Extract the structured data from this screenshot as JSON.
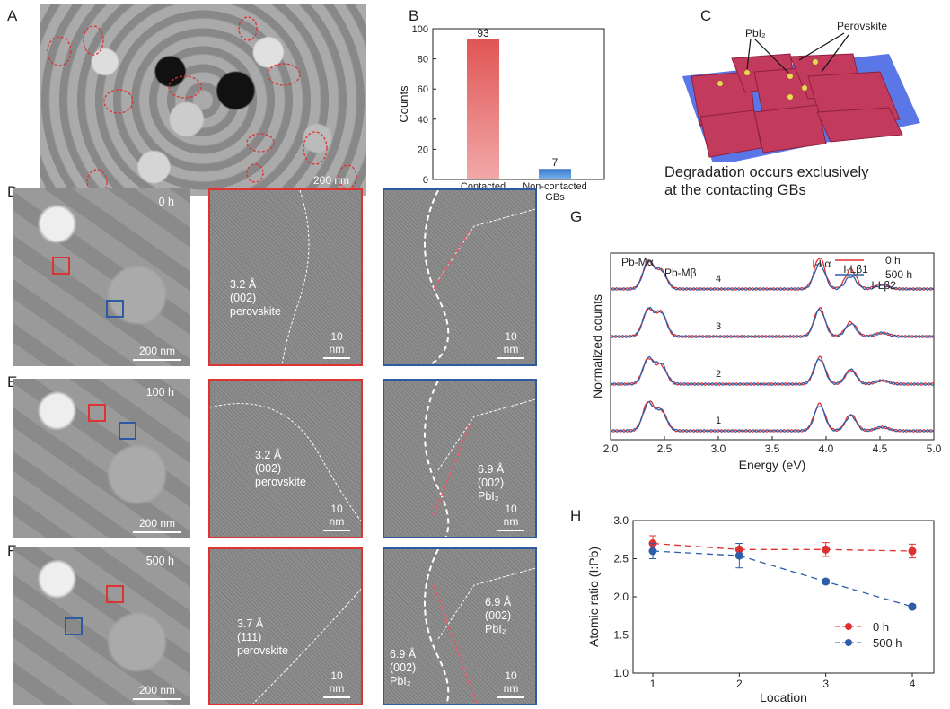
{
  "panels": {
    "A": "A",
    "B": "B",
    "C": "C",
    "D": "D",
    "E": "E",
    "F": "F",
    "G": "G",
    "H": "H"
  },
  "panelA": {
    "scale": "200 nm"
  },
  "panelC": {
    "label_pbi2": "PbI₂",
    "label_perovskite": "Perovskite",
    "caption_line1": "Degradation occurs exclusively",
    "caption_line2": "at the contacting GBs"
  },
  "panelD": {
    "time": "0 h",
    "scale": "200 nm",
    "mid": {
      "line1": "3.2 Å",
      "line2": "(002)",
      "line3": "perovskite",
      "scale": "10 nm"
    },
    "right": {
      "scale": "10 nm"
    }
  },
  "panelE": {
    "time": "100 h",
    "scale": "200 nm",
    "mid": {
      "line1": "3.2 Å",
      "line2": "(002)",
      "line3": "perovskite",
      "scale": "10 nm"
    },
    "right": {
      "line1": "6.9 Å",
      "line2": "(002)",
      "line3": "PbI₂",
      "scale": "10 nm"
    }
  },
  "panelF": {
    "time": "500 h",
    "scale": "200 nm",
    "mid": {
      "line1": "3.7 Å",
      "line2": "(111)",
      "line3": "perovskite",
      "scale": "10 nm"
    },
    "right": {
      "a1": "6.9 Å",
      "a2": "(002)",
      "a3": "PbI₂",
      "b1": "6.9 Å",
      "b2": "(002)",
      "b3": "PbI₂",
      "scale": "10 nm"
    }
  },
  "chart_data": [
    {
      "type": "bar",
      "title": "",
      "xlabel": "",
      "ylabel": "Counts",
      "ylim": [
        0,
        100
      ],
      "yticks": [
        "0",
        "20",
        "40",
        "60",
        "80",
        "100"
      ],
      "categories": [
        "Contacted GBs",
        "Non-contacted GBs"
      ],
      "values": [
        93,
        7
      ],
      "data_labels": [
        "93",
        "7"
      ],
      "colors": [
        "#e05555",
        "#3a78c8"
      ]
    },
    {
      "type": "line",
      "xlabel": "Energy (eV)",
      "ylabel": "Normalized counts",
      "xlim": [
        2.0,
        5.0
      ],
      "xticks": [
        "2.0",
        "2.5",
        "3.0",
        "3.5",
        "4.0",
        "4.5",
        "5.0"
      ],
      "series": [
        {
          "name": "0 h",
          "color": "#e03030"
        },
        {
          "name": "500 h",
          "color": "#2e5ea8"
        }
      ],
      "spectra_labels": [
        "4",
        "3",
        "2",
        "1"
      ],
      "peaks": [
        {
          "label": "Pb-Mα",
          "x": 2.35
        },
        {
          "label": "Pb-Mβ",
          "x": 2.44
        },
        {
          "label": "I-Lα",
          "x": 3.94
        },
        {
          "label": "I-Lβ1",
          "x": 4.22
        },
        {
          "label": "I-Lβ2",
          "x": 4.51
        }
      ],
      "legend": "top-right"
    },
    {
      "type": "line",
      "xlabel": "Location",
      "ylabel": "Atomic ratio (I:Pb)",
      "ylim": [
        1.0,
        3.0
      ],
      "yticks": [
        "1.0",
        "1.5",
        "2.0",
        "2.5",
        "3.0"
      ],
      "xticks": [
        "1",
        "2",
        "3",
        "4"
      ],
      "x": [
        1,
        2,
        3,
        4
      ],
      "series": [
        {
          "name": "0 h",
          "color": "#e03030",
          "values": [
            2.7,
            2.62,
            2.62,
            2.6
          ],
          "errors": [
            0.1,
            0.08,
            0.09,
            0.09
          ]
        },
        {
          "name": "500 h",
          "color": "#2e5ea8",
          "values": [
            2.6,
            2.54,
            2.2,
            1.87
          ],
          "errors": [
            0.1,
            0.16,
            0.03,
            0.03
          ]
        }
      ],
      "legend": "bottom-right"
    }
  ]
}
